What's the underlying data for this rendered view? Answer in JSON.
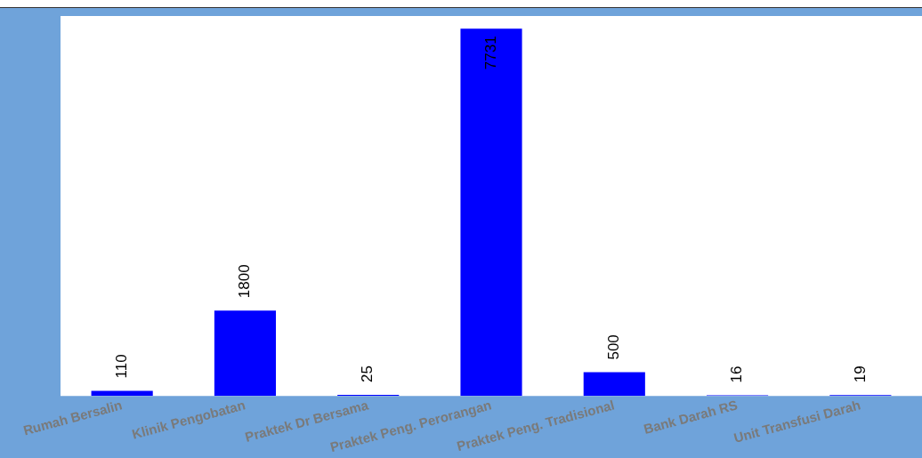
{
  "chart_data": {
    "type": "bar",
    "categories": [
      "Rumah Bersalin",
      "Klinik Pengobatan",
      "Praktek Dr Bersama",
      "Praktek Peng. Perorangan",
      "Praktek Peng. Tradisional",
      "Bank Darah RS",
      "Unit Transfusi Darah"
    ],
    "values": [
      110,
      1800,
      25,
      7731,
      500,
      16,
      19
    ],
    "color": "#0000ff",
    "tick_labels": "x",
    "data_labels": true,
    "grid": false,
    "legend": false
  }
}
